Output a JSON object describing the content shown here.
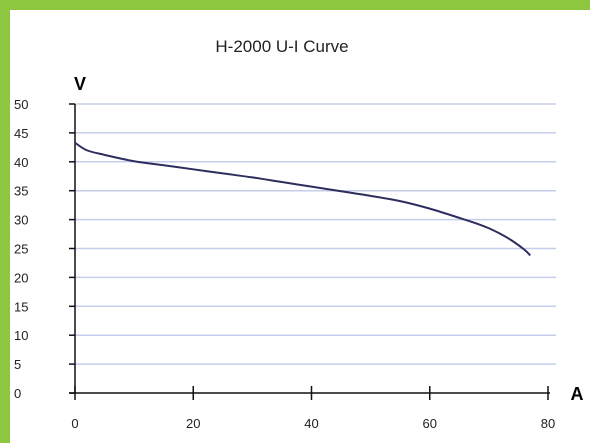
{
  "chart_data": {
    "type": "line",
    "title": "H-2000 U-I Curve",
    "xlabel": "A",
    "ylabel": "V",
    "xlim": [
      0,
      80
    ],
    "ylim": [
      0,
      50
    ],
    "x_ticks": [
      0,
      20,
      40,
      60,
      80
    ],
    "y_ticks": [
      0,
      5,
      10,
      15,
      20,
      25,
      30,
      35,
      40,
      45,
      50
    ],
    "grid": "horizontal",
    "series": [
      {
        "x": [
          0,
          2,
          5,
          10,
          15,
          20,
          25,
          30,
          35,
          40,
          45,
          50,
          55,
          60,
          65,
          68,
          70,
          72,
          74,
          76,
          77
        ],
        "y": [
          43.3,
          42.0,
          41.2,
          40.1,
          39.4,
          38.7,
          38.0,
          37.3,
          36.5,
          35.7,
          34.9,
          34.1,
          33.2,
          31.9,
          30.3,
          29.3,
          28.5,
          27.5,
          26.3,
          24.8,
          23.8
        ]
      }
    ]
  },
  "colors": {
    "border": "#8dc63f",
    "gridline": "#c5cdea",
    "axis": "#111111",
    "curve": "#2e2e5e"
  }
}
